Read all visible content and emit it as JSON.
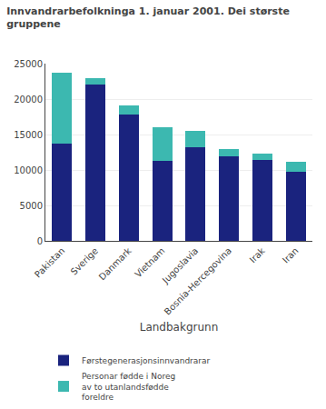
{
  "chart_data": {
    "type": "bar",
    "stacked": true,
    "title": "Innvandrarbefolkninga 1. januar 2001. Dei største\ngruppene",
    "xlabel": "Landbakgrunn",
    "categories": [
      "Pakistan",
      "Sverige",
      "Danmark",
      "Vietnam",
      "Jugoslavia",
      "Bosnia-Hercegovina",
      "Irak",
      "Iran"
    ],
    "series": [
      {
        "name": "Førstegenerasjonsinnvandrarar",
        "color": "#1a237e",
        "values": [
          13700,
          22000,
          17800,
          11300,
          13200,
          11900,
          11400,
          9700
        ]
      },
      {
        "name": "Personar fødde i Noreg\nav to utanlandsfødde\nforeldre",
        "color": "#3cb8b0",
        "values": [
          10000,
          900,
          1300,
          4700,
          2300,
          1100,
          900,
          1400
        ]
      }
    ],
    "ylim": [
      0,
      25000
    ],
    "yticks": [
      0,
      5000,
      10000,
      15000,
      20000,
      25000
    ],
    "grid": true
  }
}
